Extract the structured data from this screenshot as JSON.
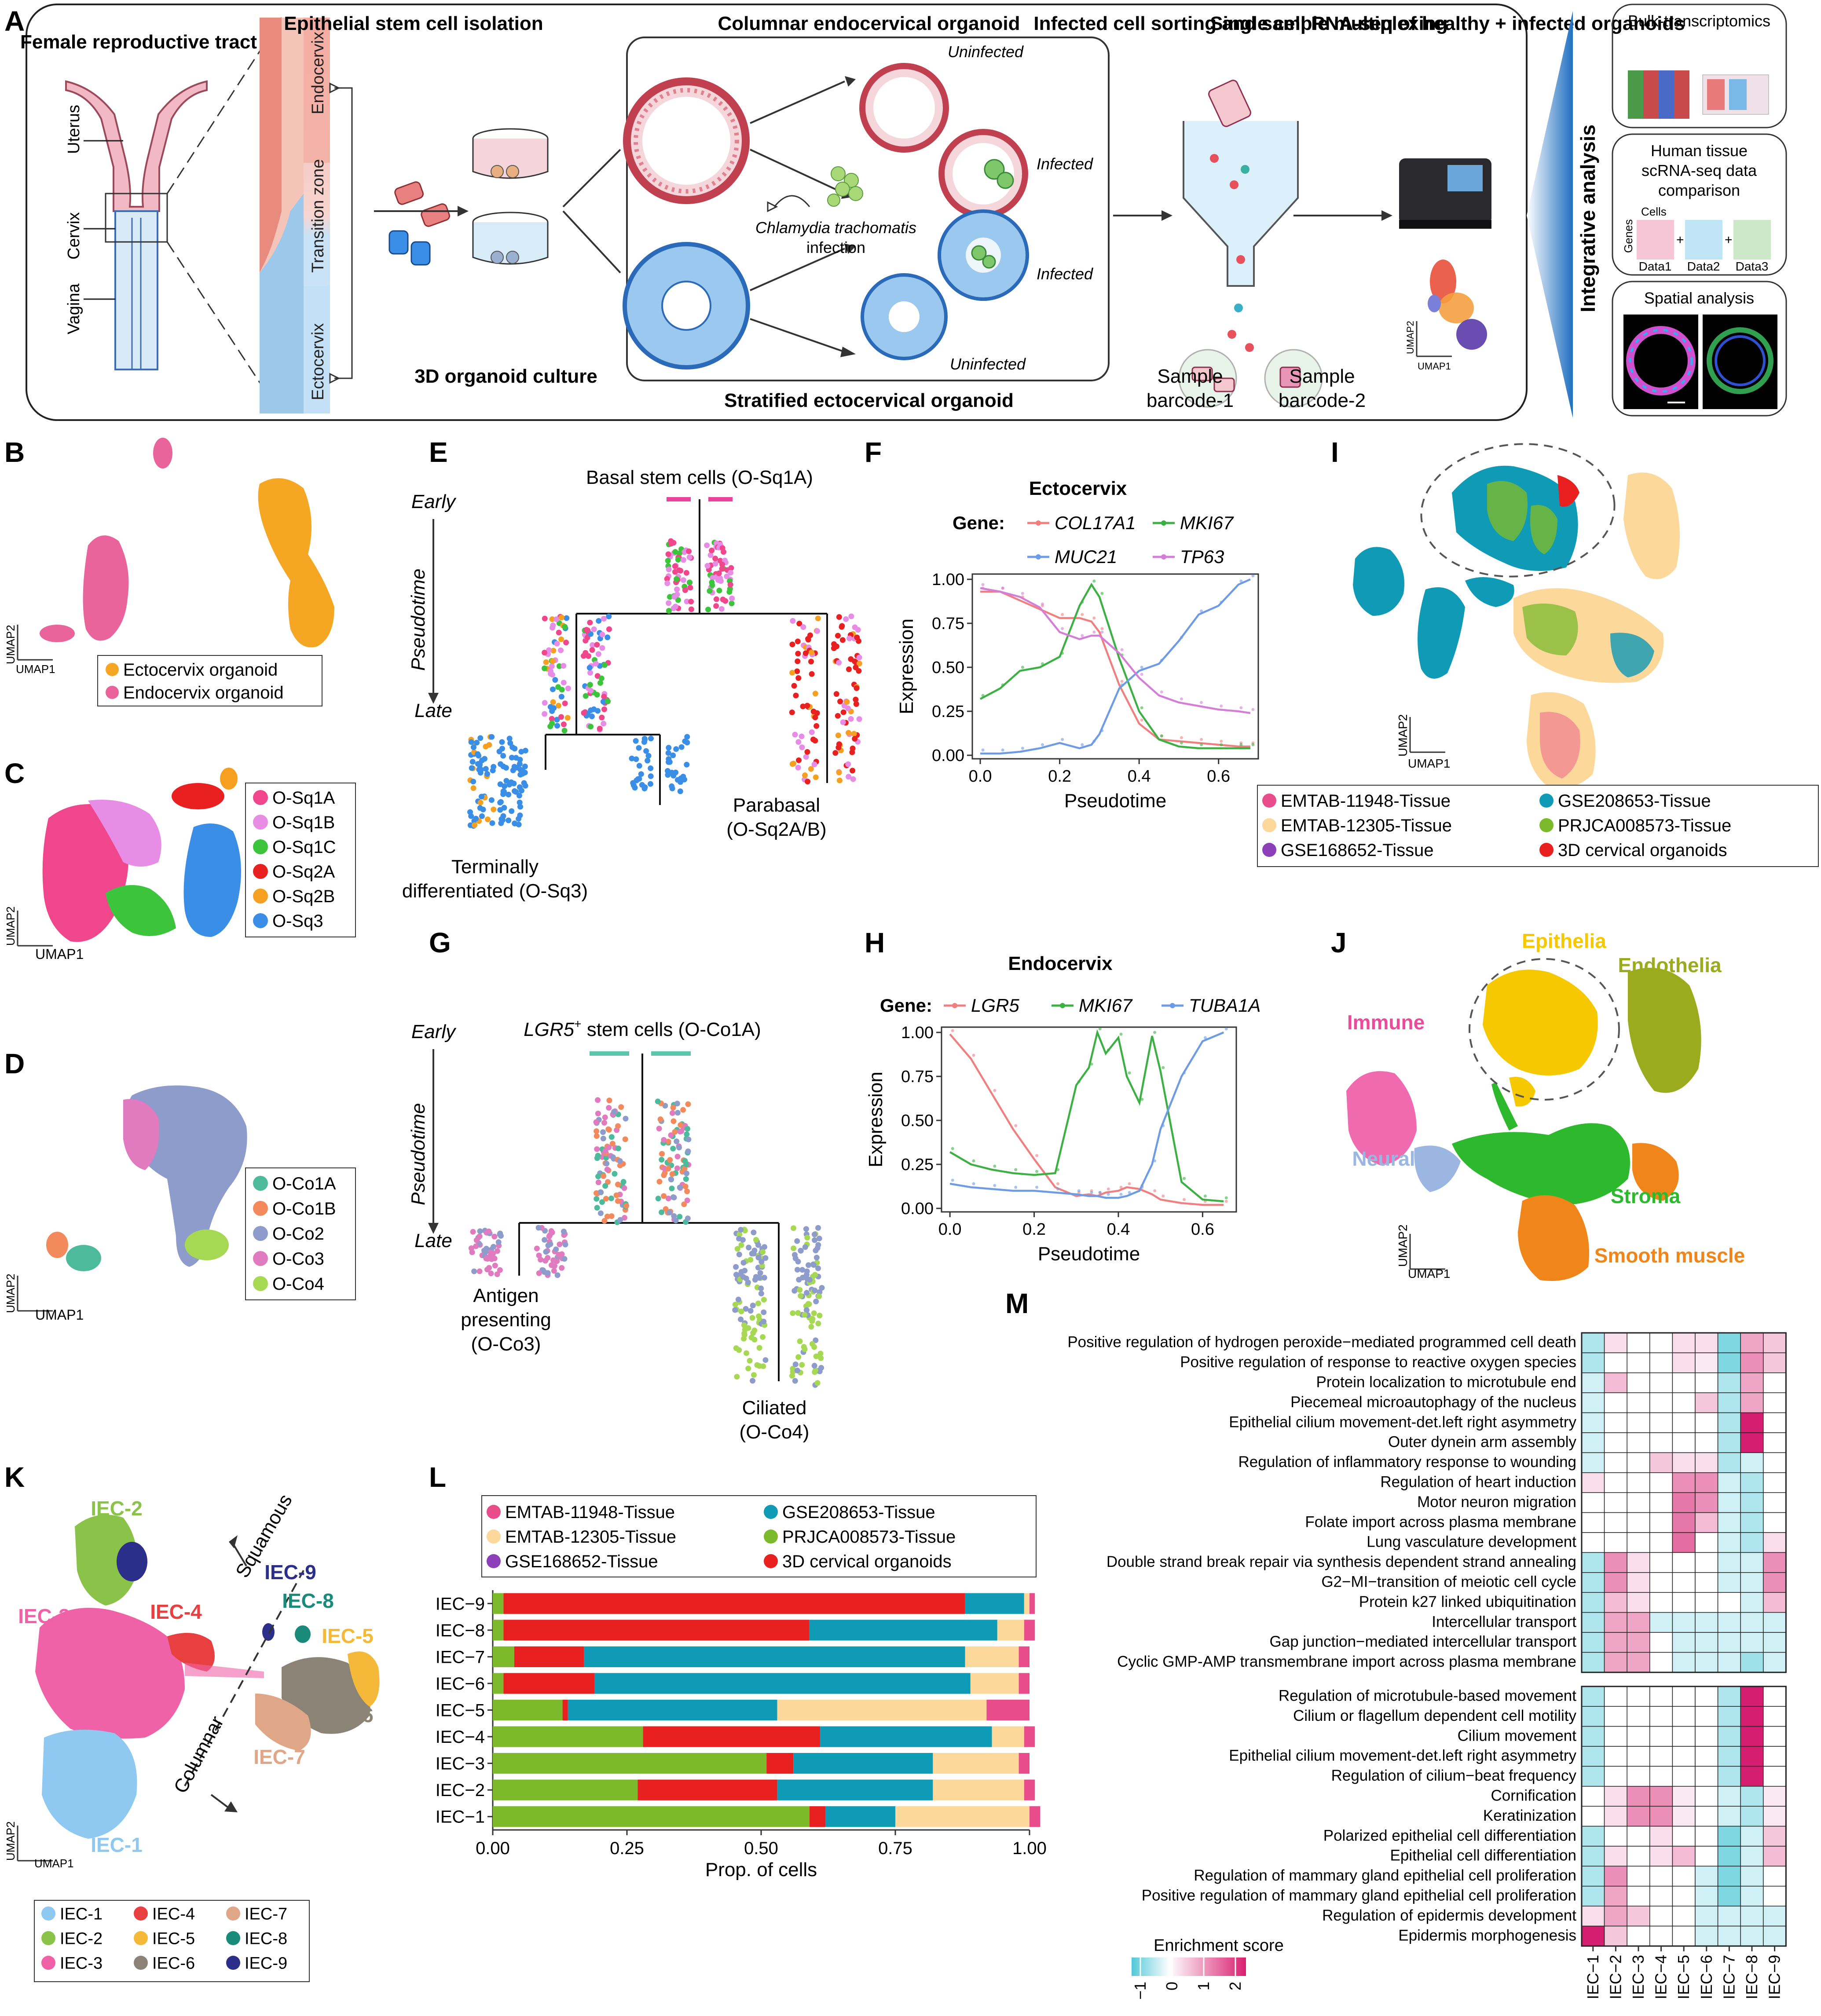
{
  "panel_letters": [
    "A",
    "B",
    "C",
    "D",
    "E",
    "F",
    "G",
    "H",
    "I",
    "J",
    "K",
    "L",
    "M"
  ],
  "panelA": {
    "titles": {
      "frt": "Female reproductive tract",
      "esc": "Epithelial stem cell isolation",
      "col": "Columnar endocervical organoid",
      "sort": "Infected cell sorting and sample multiplexing",
      "sc": "Single cell RNA-seq of healthy + infected organoids",
      "strat": "Stratified ectocervical organoid",
      "culture": "3D organoid culture",
      "integ": "Integrative analysis"
    },
    "anat": {
      "uterus": "Uterus",
      "cervix": "Cervix",
      "vagina": "Vagina"
    },
    "zones": {
      "endo": "Endocervix",
      "tz": "Transition zone",
      "ecto": "Ectocervix"
    },
    "states": {
      "uninf": "Uninfected",
      "inf": "Infected"
    },
    "infection_1": "Chlamydia trachomatis",
    "infection_2": "infection",
    "barcode1": [
      "Sample",
      "barcode-1"
    ],
    "barcode2": [
      "Sample",
      "barcode-2"
    ],
    "umap2": "UMAP2",
    "umap1": "UMAP1",
    "box1": "Bulk-transcriptomics",
    "box2": [
      "Human tissue",
      "scRNA-seq data",
      "comparison"
    ],
    "cells": "Cells",
    "genes": "Genes",
    "data": [
      "Data1",
      "Data2",
      "Data3"
    ],
    "box3": "Spatial analysis"
  },
  "panelB": {
    "legend": [
      {
        "label": "Ectocervix organoid",
        "color": "#f5a623"
      },
      {
        "label": "Endocervix organoid",
        "color": "#e8649b"
      }
    ]
  },
  "panelC": {
    "legend": [
      {
        "label": "O-Sq1A",
        "color": "#f0468c"
      },
      {
        "label": "O-Sq1B",
        "color": "#e88de6"
      },
      {
        "label": "O-Sq1C",
        "color": "#3cc43c"
      },
      {
        "label": "O-Sq2A",
        "color": "#e82020"
      },
      {
        "label": "O-Sq2B",
        "color": "#f5a020"
      },
      {
        "label": "O-Sq3",
        "color": "#3a8ee6"
      }
    ]
  },
  "panelD": {
    "legend": [
      {
        "label": "O-Co1A",
        "color": "#4dbb9b"
      },
      {
        "label": "O-Co1B",
        "color": "#f28a5e"
      },
      {
        "label": "O-Co2",
        "color": "#8e9ccb"
      },
      {
        "label": "O-Co3",
        "color": "#e07bbf"
      },
      {
        "label": "O-Co4",
        "color": "#a6d854"
      }
    ]
  },
  "panelE": {
    "early": "Early",
    "late": "Late",
    "pseudotime": "Pseudotime",
    "top": "Basal stem cells (O-Sq1A)",
    "bl": [
      "Terminally",
      "differentiated (O-Sq3)"
    ],
    "br": [
      "Parabasal",
      "(O-Sq2A/B)"
    ]
  },
  "panelG": {
    "early": "Early",
    "late": "Late",
    "pseudotime": "Pseudotime",
    "top_a": "LGR5",
    "top_sup": "+",
    "top_b": " stem cells (O-Co1A)",
    "bl": [
      "Antigen",
      "presenting",
      "(O-Co3)"
    ],
    "br": [
      "Ciliated",
      "(O-Co4)"
    ]
  },
  "panelF": {
    "chart_data": {
      "type": "line",
      "title": "Ectocervix",
      "gene_label": "Gene:",
      "xlabel": "Pseudotime",
      "ylabel": "Expression",
      "xlim": [
        -0.02,
        0.7
      ],
      "ylim": [
        -0.02,
        1.03
      ],
      "xticks": [
        "0.0",
        "0.2",
        "0.4",
        "0.6"
      ],
      "yticks": [
        "0.00",
        "0.25",
        "0.50",
        "0.75",
        "1.00"
      ],
      "x": [
        0,
        0.05,
        0.1,
        0.15,
        0.2,
        0.25,
        0.28,
        0.3,
        0.35,
        0.4,
        0.45,
        0.5,
        0.55,
        0.6,
        0.65,
        0.68
      ],
      "series": [
        {
          "name": "COL17A1",
          "color": "#f08080",
          "values": [
            0.93,
            0.93,
            0.88,
            0.83,
            0.78,
            0.78,
            0.76,
            0.7,
            0.4,
            0.18,
            0.09,
            0.08,
            0.07,
            0.06,
            0.05,
            0.05
          ]
        },
        {
          "name": "MKI67",
          "color": "#3cb043",
          "values": [
            0.32,
            0.38,
            0.48,
            0.5,
            0.56,
            0.85,
            0.97,
            0.9,
            0.55,
            0.25,
            0.09,
            0.05,
            0.04,
            0.04,
            0.04,
            0.04
          ]
        },
        {
          "name": "MUC21",
          "color": "#6e9be6",
          "values": [
            0.01,
            0.01,
            0.02,
            0.04,
            0.07,
            0.04,
            0.06,
            0.12,
            0.38,
            0.48,
            0.52,
            0.65,
            0.8,
            0.85,
            0.97,
            1.0
          ]
        },
        {
          "name": "TP63",
          "color": "#d57ed8",
          "values": [
            0.95,
            0.93,
            0.9,
            0.84,
            0.7,
            0.66,
            0.68,
            0.68,
            0.58,
            0.44,
            0.34,
            0.3,
            0.28,
            0.26,
            0.25,
            0.24
          ]
        }
      ]
    }
  },
  "panelH": {
    "chart_data": {
      "type": "line",
      "title": "Endocervix",
      "gene_label": "Gene:",
      "xlabel": "Pseudotime",
      "ylabel": "Expression",
      "xlim": [
        -0.02,
        0.68
      ],
      "ylim": [
        -0.02,
        1.03
      ],
      "xticks": [
        "0.0",
        "0.2",
        "0.4",
        "0.6"
      ],
      "yticks": [
        "0.00",
        "0.25",
        "0.50",
        "0.75",
        "1.00"
      ],
      "x": [
        0,
        0.05,
        0.1,
        0.15,
        0.2,
        0.25,
        0.3,
        0.33,
        0.35,
        0.37,
        0.4,
        0.42,
        0.45,
        0.48,
        0.5,
        0.55,
        0.6,
        0.65
      ],
      "series": [
        {
          "name": "LGR5",
          "color": "#f08080",
          "values": [
            0.99,
            0.85,
            0.65,
            0.45,
            0.28,
            0.12,
            0.07,
            0.08,
            0.07,
            0.09,
            0.1,
            0.12,
            0.11,
            0.08,
            0.05,
            0.03,
            0.02,
            0.02
          ]
        },
        {
          "name": "MKI67",
          "color": "#3cb043",
          "values": [
            0.32,
            0.25,
            0.22,
            0.2,
            0.19,
            0.2,
            0.7,
            0.8,
            1.0,
            0.88,
            0.97,
            0.75,
            0.6,
            0.98,
            0.78,
            0.15,
            0.05,
            0.04
          ]
        },
        {
          "name": "TUBA1A",
          "color": "#6e9be6",
          "values": [
            0.14,
            0.12,
            0.11,
            0.1,
            0.1,
            0.09,
            0.08,
            0.07,
            0.07,
            0.06,
            0.06,
            0.07,
            0.1,
            0.25,
            0.45,
            0.75,
            0.95,
            1.0
          ]
        }
      ]
    }
  },
  "panelI": {
    "legend": [
      {
        "label": "EMTAB-11948-Tissue",
        "color": "#e84c8b"
      },
      {
        "label": "GSE208653-Tissue",
        "color": "#0f9ab5"
      },
      {
        "label": "EMTAB-12305-Tissue",
        "color": "#fcd89a"
      },
      {
        "label": "PRJCA008573-Tissue",
        "color": "#7cba2c"
      },
      {
        "label": "GSE168652-Tissue",
        "color": "#8b3fb8"
      },
      {
        "label": "3D cervical organoids",
        "color": "#e82020"
      }
    ]
  },
  "panelJ": {
    "labels": [
      {
        "label": "Epithelia",
        "color": "#f5c800"
      },
      {
        "label": "Endothelia",
        "color": "#9aab1e"
      },
      {
        "label": "Immune",
        "color": "#e84c9b"
      },
      {
        "label": "Neural",
        "color": "#9bb6e0"
      },
      {
        "label": "Stroma",
        "color": "#2eb82e"
      },
      {
        "label": "Smooth muscle",
        "color": "#f0851a"
      }
    ]
  },
  "panelK": {
    "labels": {
      "iec1": "IEC-1",
      "iec2": "IEC-2",
      "iec3": "IEC-3",
      "iec4": "IEC-4",
      "iec5": "IEC-5",
      "iec6": "IEC-6",
      "iec7": "IEC-7",
      "iec8": "IEC-8",
      "iec9": "IEC-9"
    },
    "squamous": "Squamous",
    "columnar": "Columnar",
    "legend": [
      {
        "label": "IEC-1",
        "color": "#8fc8f0"
      },
      {
        "label": "IEC-4",
        "color": "#e84040"
      },
      {
        "label": "IEC-7",
        "color": "#e0a688"
      },
      {
        "label": "IEC-2",
        "color": "#8bc34a"
      },
      {
        "label": "IEC-5",
        "color": "#f5b93a"
      },
      {
        "label": "IEC-8",
        "color": "#1a8a7a"
      },
      {
        "label": "IEC-3",
        "color": "#f062a8"
      },
      {
        "label": "IEC-6",
        "color": "#8c8377"
      },
      {
        "label": "IEC-9",
        "color": "#2b2f8a"
      }
    ]
  },
  "panelL": {
    "chart_data": {
      "type": "bar",
      "orientation": "horizontal",
      "stacked": true,
      "xlabel": "Prop. of cells",
      "ylabel": "",
      "xlim": [
        0,
        1
      ],
      "xticks": [
        "0.00",
        "0.25",
        "0.50",
        "0.75",
        "1.00"
      ],
      "categories": [
        "IEC−9",
        "IEC−8",
        "IEC−7",
        "IEC−6",
        "IEC−5",
        "IEC−4",
        "IEC−3",
        "IEC−2",
        "IEC−1"
      ],
      "series": [
        {
          "name": "PRJCA008573-Tissue",
          "color": "#7cba2c",
          "values": [
            0.02,
            0.02,
            0.04,
            0.02,
            0.13,
            0.28,
            0.51,
            0.27,
            0.59
          ]
        },
        {
          "name": "3D cervical organoids",
          "color": "#e82020",
          "values": [
            0.86,
            0.57,
            0.13,
            0.17,
            0.01,
            0.33,
            0.05,
            0.26,
            0.03
          ]
        },
        {
          "name": "GSE208653-Tissue",
          "color": "#0f9ab5",
          "values": [
            0.11,
            0.35,
            0.71,
            0.7,
            0.39,
            0.32,
            0.26,
            0.29,
            0.13
          ]
        },
        {
          "name": "EMTAB-12305-Tissue",
          "color": "#fcd89a",
          "values": [
            0.01,
            0.05,
            0.1,
            0.09,
            0.39,
            0.06,
            0.16,
            0.17,
            0.25
          ]
        },
        {
          "name": "EMTAB-11948-Tissue",
          "color": "#e84c8b",
          "values": [
            0.01,
            0.02,
            0.02,
            0.02,
            0.08,
            0.02,
            0.02,
            0.02,
            0.02
          ]
        },
        {
          "name": "GSE168652-Tissue",
          "color": "#8b3fb8",
          "values": [
            0,
            0,
            0,
            0,
            0,
            0,
            0,
            0,
            0
          ]
        }
      ]
    }
  },
  "panelM": {
    "chart_data": {
      "type": "heatmap",
      "colorbar_title": "Enrichment score",
      "colorbar_ticks": [
        "−1",
        "0",
        "1",
        "2"
      ],
      "columns": [
        "IEC−1",
        "IEC−2",
        "IEC−3",
        "IEC−4",
        "IEC−5",
        "IEC−6",
        "IEC−7",
        "IEC−8",
        "IEC−9"
      ],
      "rows": [
        "Positive regulation of hydrogen peroxide−mediated programmed cell death",
        "Positive regulation of response to reactive oxygen species",
        "Protein localization to microtubule end",
        "Piecemeal microautophagy of the nucleus",
        "Epithelial cilium movement-det.left right asymmetry",
        "Outer dynein arm assembly",
        "Regulation of inflammatory response to wounding",
        "Regulation of heart induction",
        "Motor neuron migration",
        "Folate import across plasma membrane",
        "Lung vasculature development",
        "Double strand break repair via synthesis dependent strand annealing",
        "G2−MI−transition of meiotic cell cycle",
        "Protein k27 linked ubiquitination",
        "Intercellular transport",
        "Gap junction−mediated intercellular transport",
        "Cyclic GMP-AMP transmembrane import across plasma membrane",
        "Regulation of microtubule-based movement",
        "Cilium or flagellum dependent cell motility",
        "Cilium movement",
        "Epithelial cilium movement-det.left right asymmetry",
        "Regulation of cilium−beat frequency",
        "Cornification",
        "Keratinization",
        "Polarized epithelial cell differentiation",
        "Epithelial cell differentiation",
        "Regulation of mammary gland epithelial cell proliferation",
        "Positive regulation of mammary gland epithelial cell proliferation",
        "Regulation of epidermis development",
        "Epidermis morphogenesis"
      ],
      "values": [
        [
          -0.5,
          0.3,
          0,
          0,
          0.3,
          0.3,
          -0.8,
          0.8,
          0.5
        ],
        [
          -0.5,
          0,
          0,
          0,
          0.3,
          0.2,
          -0.8,
          1.0,
          0.5
        ],
        [
          -0.3,
          0.6,
          0,
          0,
          0,
          0,
          -0.5,
          0.8,
          0
        ],
        [
          -0.3,
          0,
          0,
          0,
          0,
          0.5,
          -0.5,
          0.8,
          0
        ],
        [
          -0.3,
          0,
          0,
          0,
          0,
          0,
          -0.5,
          2.0,
          0
        ],
        [
          -0.3,
          0,
          0,
          0,
          0,
          0,
          -0.5,
          2.0,
          0
        ],
        [
          -0.3,
          0,
          0,
          0.5,
          0.3,
          0.3,
          -0.5,
          -0.3,
          0
        ],
        [
          0.3,
          0,
          0,
          0,
          1.0,
          1.0,
          -0.3,
          -0.5,
          0
        ],
        [
          0,
          0,
          0,
          0,
          1.2,
          1.0,
          -0.3,
          -0.5,
          0
        ],
        [
          0,
          0,
          0,
          0,
          1.2,
          0.6,
          -0.3,
          -0.5,
          0
        ],
        [
          0,
          0,
          0,
          0,
          1.3,
          0,
          -0.3,
          -0.5,
          0.3
        ],
        [
          -0.5,
          1.0,
          0.3,
          0,
          0,
          0,
          -0.3,
          -0.3,
          1.0
        ],
        [
          -0.5,
          1.0,
          0.3,
          0,
          0,
          0,
          -0.3,
          -0.3,
          1.0
        ],
        [
          -0.5,
          0.6,
          0.3,
          0,
          0,
          0,
          0,
          -0.3,
          0.6
        ],
        [
          -0.5,
          0.8,
          0.8,
          -0.3,
          -0.3,
          -0.3,
          -0.3,
          -0.3,
          -0.3
        ],
        [
          -0.5,
          0.8,
          0.8,
          0,
          -0.3,
          -0.3,
          -0.3,
          -0.3,
          -0.3
        ],
        [
          -0.5,
          0.8,
          0.8,
          0,
          -0.3,
          -0.3,
          -0.3,
          -0.6,
          -0.3
        ],
        [
          -0.5,
          0,
          0,
          0,
          0,
          0,
          -0.5,
          2.0,
          0
        ],
        [
          -0.5,
          0,
          0,
          0,
          0,
          0,
          -0.5,
          2.0,
          0
        ],
        [
          -0.5,
          0,
          0,
          0,
          0,
          0,
          -0.5,
          2.0,
          0
        ],
        [
          -0.5,
          0,
          0,
          0,
          0,
          0,
          -0.5,
          2.0,
          0
        ],
        [
          -0.5,
          0,
          0,
          0,
          0,
          0,
          -0.5,
          2.0,
          0
        ],
        [
          0,
          0.3,
          1.0,
          1.0,
          0.2,
          0,
          -0.3,
          -0.5,
          0.2
        ],
        [
          0,
          0.3,
          1.0,
          1.0,
          0.2,
          0,
          -0.3,
          -0.5,
          0.2
        ],
        [
          -0.5,
          0,
          0,
          0.3,
          0,
          0,
          -0.8,
          -0.3,
          0.5
        ],
        [
          -0.5,
          0.3,
          0,
          0.3,
          0.6,
          0,
          -0.8,
          -0.3,
          0.6
        ],
        [
          -0.5,
          1.0,
          0,
          0,
          0,
          -0.3,
          -0.8,
          -0.3,
          0
        ],
        [
          -0.5,
          0.8,
          0,
          0,
          0,
          -0.3,
          -0.8,
          -0.3,
          0
        ],
        [
          0.3,
          0.8,
          0.5,
          0,
          0,
          -0.3,
          -0.3,
          -0.3,
          -0.3
        ],
        [
          2.0,
          0.5,
          0,
          0,
          0,
          -0.3,
          -0.3,
          -0.3,
          -0.3
        ]
      ]
    }
  }
}
